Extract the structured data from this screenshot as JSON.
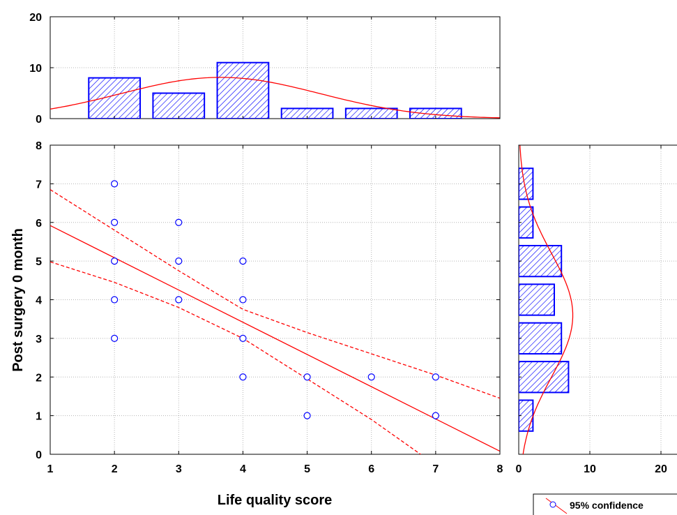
{
  "chart_data": [
    {
      "type": "scatter",
      "xlabel": "Life quality score",
      "ylabel": "Post surgery 0 month",
      "xlim": [
        1,
        8
      ],
      "ylim": [
        0,
        8
      ],
      "xticks": [
        "1",
        "2",
        "3",
        "4",
        "5",
        "6",
        "7",
        "8"
      ],
      "yticks": [
        "0",
        "1",
        "2",
        "3",
        "4",
        "5",
        "6",
        "7",
        "8"
      ],
      "grid": true,
      "points": [
        {
          "x": 2,
          "y": 7
        },
        {
          "x": 2,
          "y": 6
        },
        {
          "x": 2,
          "y": 5
        },
        {
          "x": 2,
          "y": 4
        },
        {
          "x": 2,
          "y": 3
        },
        {
          "x": 3,
          "y": 6
        },
        {
          "x": 3,
          "y": 5
        },
        {
          "x": 3,
          "y": 4
        },
        {
          "x": 4,
          "y": 5
        },
        {
          "x": 4,
          "y": 4
        },
        {
          "x": 4,
          "y": 3
        },
        {
          "x": 4,
          "y": 2
        },
        {
          "x": 5,
          "y": 2
        },
        {
          "x": 5,
          "y": 1
        },
        {
          "x": 6,
          "y": 2
        },
        {
          "x": 7,
          "y": 2
        },
        {
          "x": 7,
          "y": 1
        }
      ],
      "regression_line": [
        {
          "x": 1,
          "y": 5.92
        },
        {
          "x": 8,
          "y": 0.08
        }
      ],
      "confidence_upper": [
        {
          "x": 1,
          "y": 6.85
        },
        {
          "x": 2,
          "y": 5.8
        },
        {
          "x": 3,
          "y": 4.75
        },
        {
          "x": 4,
          "y": 3.75
        },
        {
          "x": 5,
          "y": 3.15
        },
        {
          "x": 6,
          "y": 2.6
        },
        {
          "x": 7,
          "y": 2.05
        },
        {
          "x": 8,
          "y": 1.45
        }
      ],
      "confidence_lower": [
        {
          "x": 1,
          "y": 4.98
        },
        {
          "x": 2,
          "y": 4.45
        },
        {
          "x": 3,
          "y": 3.8
        },
        {
          "x": 4,
          "y": 3.0
        },
        {
          "x": 5,
          "y": 1.95
        },
        {
          "x": 6,
          "y": 0.9
        },
        {
          "x": 6.85,
          "y": -0.1
        }
      ],
      "legend": {
        "entries": [
          "95% confidence"
        ],
        "position": "bottom-right"
      },
      "colors": {
        "points": "#0000ff",
        "line": "#ff0000"
      }
    },
    {
      "type": "bar",
      "orientation": "vertical",
      "bins": [
        {
          "x": 2,
          "count": 8
        },
        {
          "x": 3,
          "count": 5
        },
        {
          "x": 4,
          "count": 11
        },
        {
          "x": 5,
          "count": 2
        },
        {
          "x": 6,
          "count": 2
        },
        {
          "x": 7,
          "count": 2
        }
      ],
      "ylim": [
        0,
        20
      ],
      "yticks": [
        "0",
        "10",
        "20"
      ],
      "normal_curve": {
        "mean": 3.65,
        "sd": 1.55,
        "peak": 8.1
      },
      "colors": {
        "fill": "#0000ff",
        "line": "#ff0000"
      }
    },
    {
      "type": "bar",
      "orientation": "horizontal",
      "bins": [
        {
          "y": 1,
          "count": 2
        },
        {
          "y": 2,
          "count": 7
        },
        {
          "y": 3,
          "count": 6
        },
        {
          "y": 4,
          "count": 5
        },
        {
          "y": 5,
          "count": 6
        },
        {
          "y": 6,
          "count": 2
        },
        {
          "y": 7,
          "count": 2
        }
      ],
      "xlim": [
        0,
        20
      ],
      "xticks": [
        "0",
        "10",
        "20"
      ],
      "normal_curve": {
        "mean": 3.6,
        "sd": 1.6,
        "peak": 7.6
      },
      "colors": {
        "fill": "#0000ff",
        "line": "#ff0000"
      }
    }
  ]
}
